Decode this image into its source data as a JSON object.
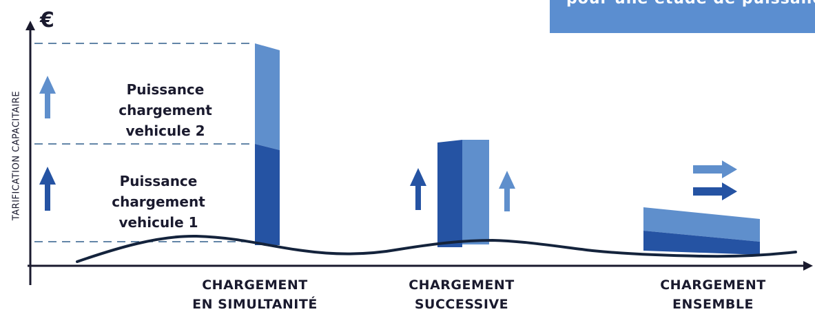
{
  "banner_text": "pour une etude de puissance",
  "y_axis": {
    "symbol": "€",
    "label": "TARIFICATION CAPACITAIRE"
  },
  "labels": {
    "vehicle2": "Puissance\nchargement\nvehicule 2",
    "vehicle1": "Puissance\nchargement\nvehicule 1"
  },
  "scenarios": [
    {
      "label": "CHARGEMENT\nEN SIMULTANITÉ"
    },
    {
      "label": "CHARGEMENT\nSUCCESSIVE"
    },
    {
      "label": "CHARGEMENT\nENSEMBLE"
    }
  ],
  "colors": {
    "dark_blue": "#2553a3",
    "light_blue": "#5f8fcc",
    "banner": "#5b8ed0",
    "axis": "#1a1a2e",
    "curve": "#14233c",
    "dashed": "#2f5d8a"
  },
  "icons": {
    "up_light": "arrow-up-icon",
    "up_dark": "arrow-up-icon",
    "right": "arrow-right-icon"
  }
}
